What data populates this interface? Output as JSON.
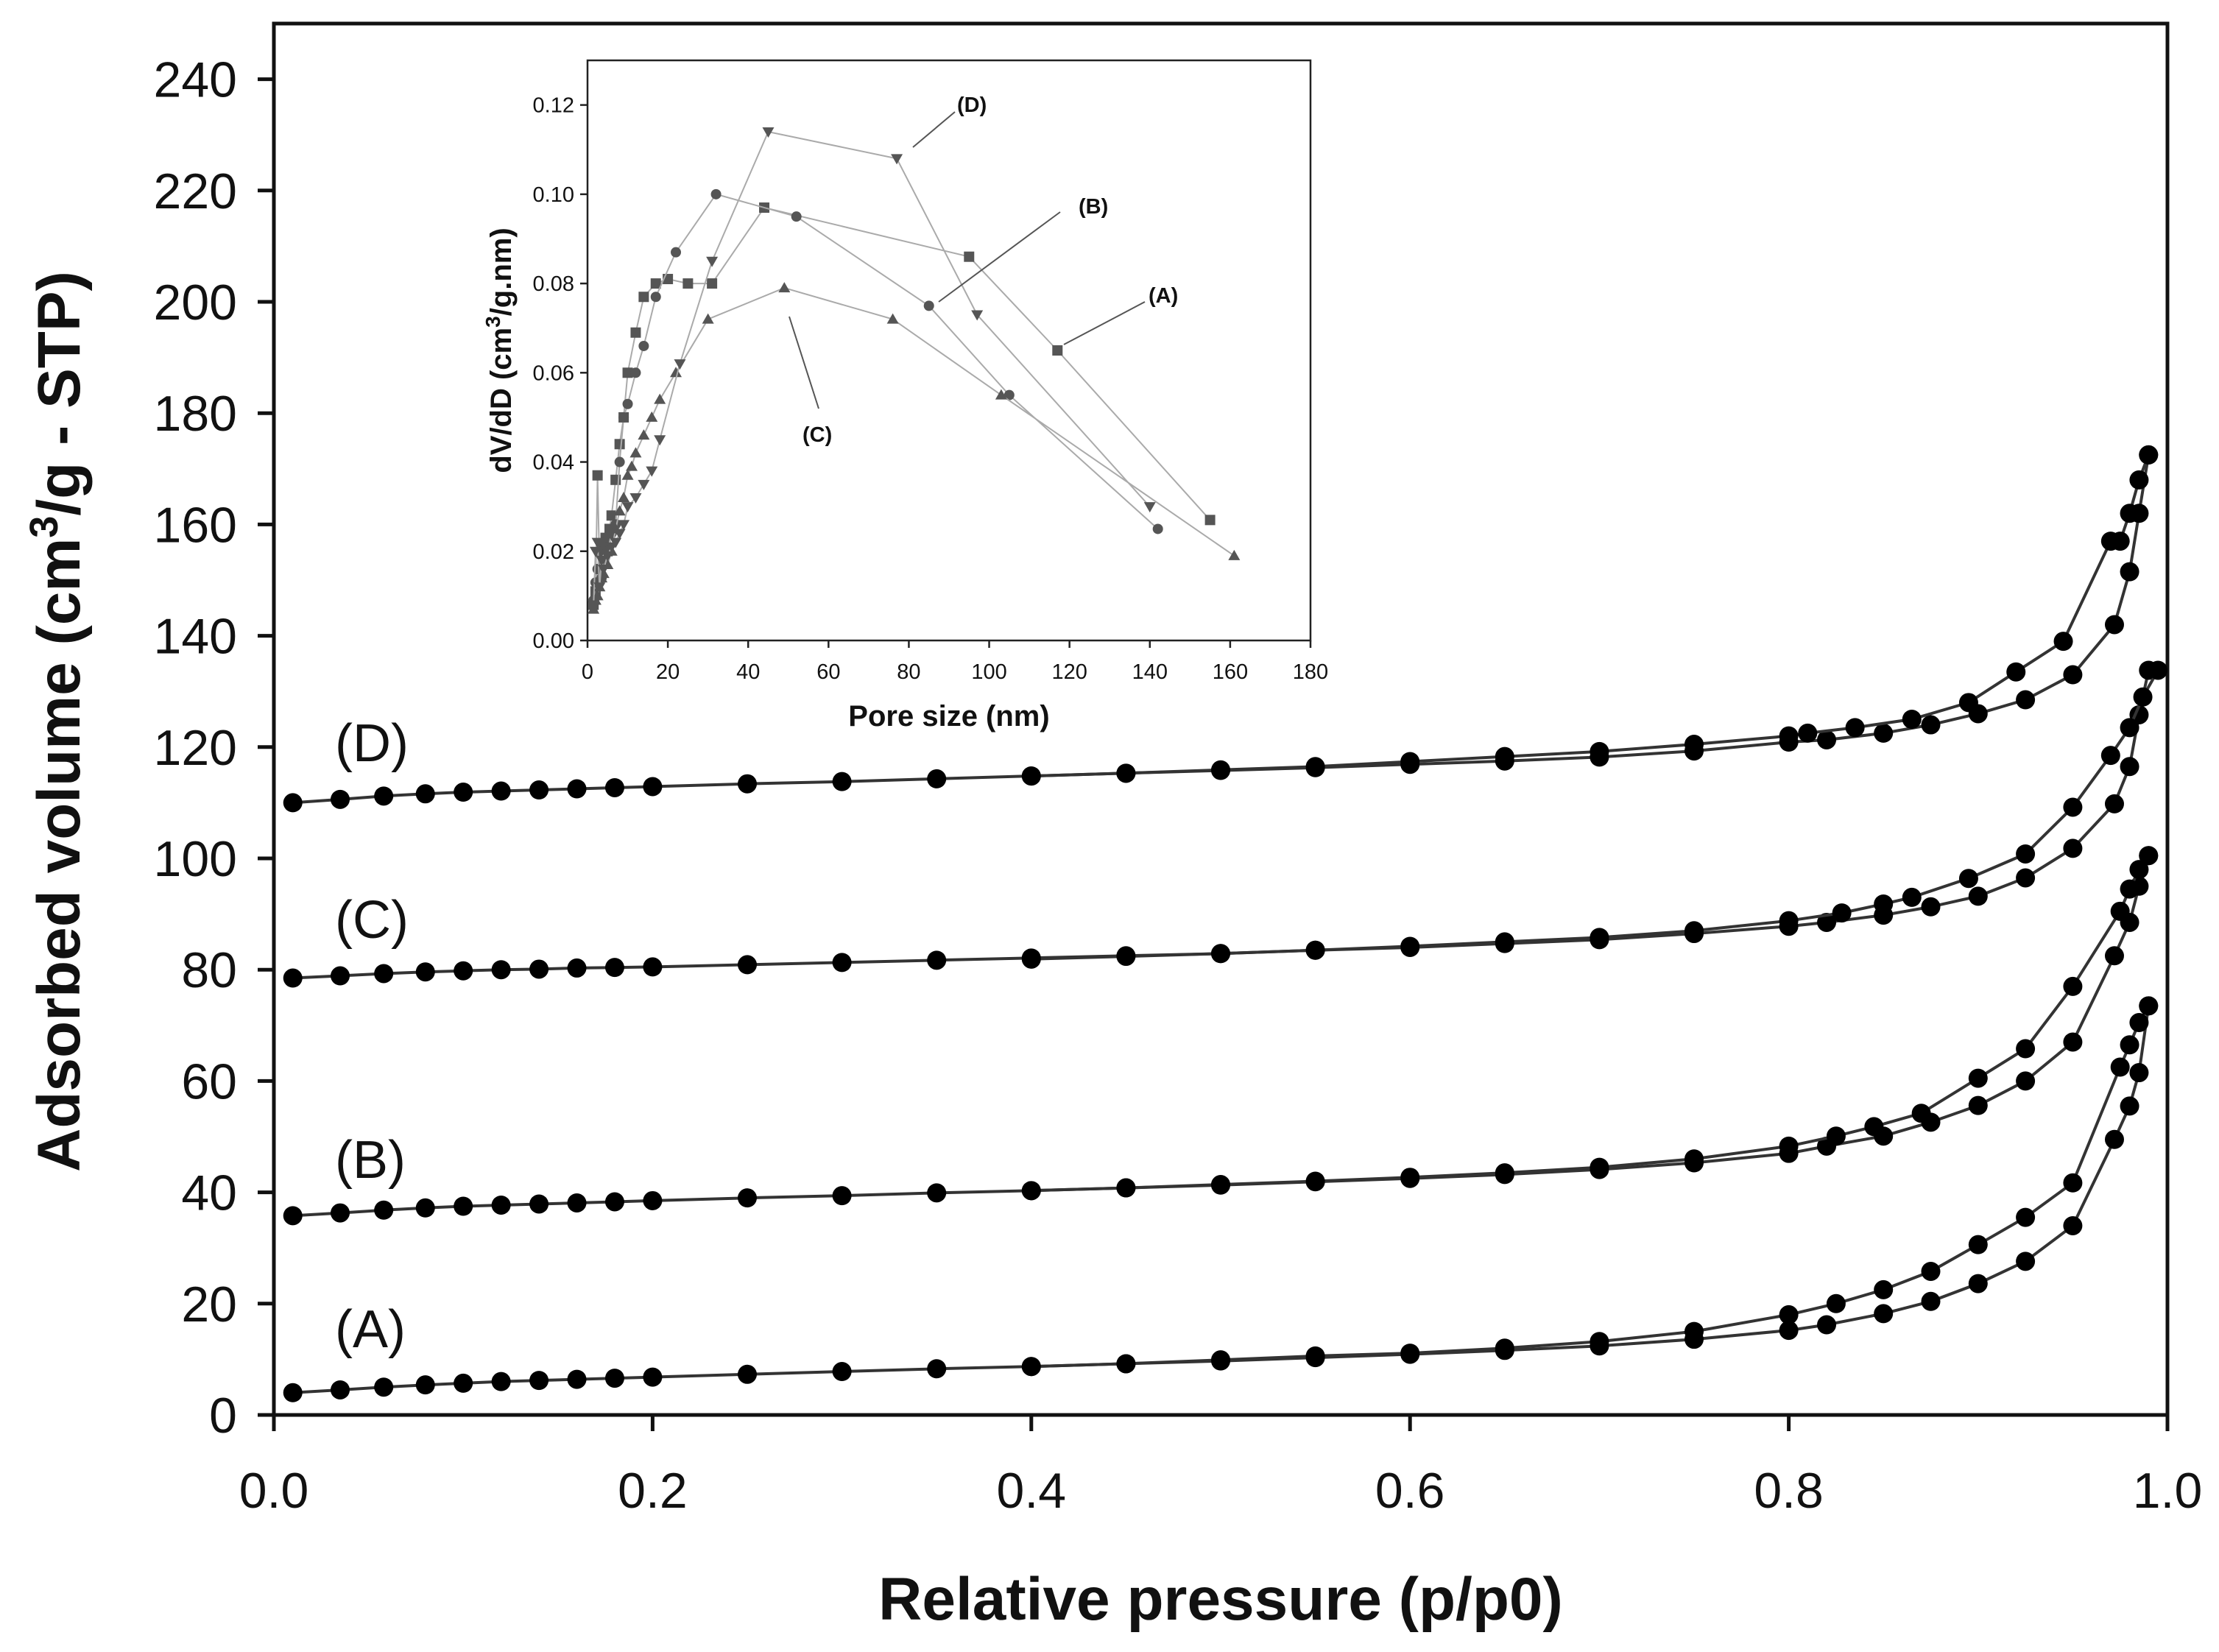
{
  "chart_data": [
    {
      "type": "line",
      "name": "main",
      "xlabel": "Relative pressure (p/p0)",
      "ylabel": "Adsorbed volume (cm3/g - STP)",
      "ylabel_base": "Adsorbed volume (cm",
      "ylabel_sup": "3",
      "ylabel_tail": "/g - STP)",
      "xlim": [
        0,
        1.0
      ],
      "ylim": [
        0,
        250
      ],
      "xticks": [
        "0.0",
        "0.2",
        "0.4",
        "0.6",
        "0.8",
        "1.0"
      ],
      "yticks": [
        "0",
        "20",
        "40",
        "60",
        "80",
        "100",
        "120",
        "140",
        "160",
        "180",
        "200",
        "220",
        "240"
      ],
      "xtick_values": [
        0,
        0.2,
        0.4,
        0.6,
        0.8,
        1.0
      ],
      "ytick_values": [
        0,
        20,
        40,
        60,
        80,
        100,
        120,
        140,
        160,
        180,
        200,
        220,
        240
      ],
      "grid": false,
      "series": [
        {
          "name": "(A)",
          "adsorption": {
            "x": [
              0.01,
              0.035,
              0.058,
              0.08,
              0.1,
              0.12,
              0.14,
              0.16,
              0.18,
              0.2,
              0.25,
              0.3,
              0.35,
              0.4,
              0.45,
              0.5,
              0.55,
              0.6,
              0.65,
              0.7,
              0.75,
              0.8,
              0.82,
              0.85,
              0.875,
              0.9,
              0.925,
              0.95,
              0.972,
              0.98,
              0.985,
              0.99
            ],
            "y": [
              4,
              4.5,
              5,
              5.4,
              5.7,
              6,
              6.2,
              6.4,
              6.6,
              6.8,
              7.3,
              7.8,
              8.3,
              8.7,
              9.2,
              9.7,
              10.3,
              10.9,
              11.6,
              12.4,
              13.6,
              15.2,
              16.2,
              18.2,
              20.4,
              23.6,
              27.6,
              34,
              49.5,
              55.5,
              61.5,
              73.5
            ]
          },
          "desorption": {
            "x": [
              0.99,
              0.985,
              0.98,
              0.975,
              0.95,
              0.925,
              0.9,
              0.875,
              0.85,
              0.825,
              0.8,
              0.75,
              0.7,
              0.65,
              0.6,
              0.55,
              0.5,
              0.45,
              0.4
            ],
            "y": [
              73.5,
              70.5,
              66.5,
              62.5,
              41.7,
              35.5,
              30.6,
              25.8,
              22.5,
              20,
              18,
              15,
              13.2,
              12,
              11.1,
              10.6,
              9.9,
              9.2,
              8.7
            ]
          }
        },
        {
          "name": "(B)",
          "adsorption": {
            "x": [
              0.01,
              0.035,
              0.058,
              0.08,
              0.1,
              0.12,
              0.14,
              0.16,
              0.18,
              0.2,
              0.25,
              0.3,
              0.35,
              0.4,
              0.45,
              0.5,
              0.55,
              0.6,
              0.65,
              0.7,
              0.75,
              0.8,
              0.82,
              0.85,
              0.875,
              0.9,
              0.925,
              0.95,
              0.972,
              0.98,
              0.985,
              0.99
            ],
            "y": [
              35.8,
              36.3,
              36.8,
              37.2,
              37.5,
              37.7,
              37.9,
              38.1,
              38.3,
              38.5,
              39,
              39.4,
              39.9,
              40.3,
              40.8,
              41.3,
              41.9,
              42.5,
              43.2,
              44.1,
              45.3,
              47,
              48.3,
              50.1,
              52.6,
              55.6,
              60,
              67,
              82.5,
              88.5,
              95,
              100.5
            ]
          },
          "desorption": {
            "x": [
              0.99,
              0.985,
              0.98,
              0.975,
              0.95,
              0.925,
              0.9,
              0.87,
              0.845,
              0.825,
              0.8,
              0.75,
              0.7,
              0.65,
              0.6,
              0.55,
              0.5,
              0.45,
              0.4
            ],
            "y": [
              100.5,
              98,
              94.5,
              90.5,
              77,
              65.8,
              60.5,
              54.2,
              51.8,
              50.1,
              48.3,
              46,
              44.5,
              43.5,
              42.7,
              42,
              41.4,
              40.8,
              40.3
            ]
          }
        },
        {
          "name": "(C)",
          "adsorption": {
            "x": [
              0.01,
              0.035,
              0.058,
              0.08,
              0.1,
              0.12,
              0.14,
              0.16,
              0.18,
              0.2,
              0.25,
              0.3,
              0.35,
              0.4,
              0.45,
              0.5,
              0.55,
              0.6,
              0.65,
              0.7,
              0.75,
              0.8,
              0.82,
              0.85,
              0.875,
              0.9,
              0.925,
              0.95,
              0.972,
              0.98,
              0.985,
              0.99
            ],
            "y": [
              78.5,
              78.9,
              79.3,
              79.6,
              79.8,
              80,
              80.1,
              80.3,
              80.4,
              80.5,
              80.9,
              81.3,
              81.7,
              82.1,
              82.5,
              82.9,
              83.5,
              84,
              84.7,
              85.4,
              86.5,
              87.8,
              88.5,
              89.8,
              91.3,
              93.2,
              96.5,
              101.8,
              109.8,
              116.5,
              125.8,
              133.8
            ]
          },
          "desorption": {
            "x": [
              0.995,
              0.987,
              0.98,
              0.97,
              0.95,
              0.925,
              0.895,
              0.865,
              0.85,
              0.828,
              0.8,
              0.75,
              0.7,
              0.65,
              0.6,
              0.55,
              0.5,
              0.45,
              0.4
            ],
            "y": [
              133.8,
              129,
              123.5,
              118.5,
              109.2,
              100.8,
              96.4,
              93,
              91.8,
              90.2,
              88.8,
              87,
              85.8,
              85,
              84.2,
              83.5,
              82.9,
              82.4,
              81.9
            ]
          }
        },
        {
          "name": "(D)",
          "adsorption": {
            "x": [
              0.01,
              0.035,
              0.058,
              0.08,
              0.1,
              0.12,
              0.14,
              0.16,
              0.18,
              0.2,
              0.25,
              0.3,
              0.35,
              0.4,
              0.45,
              0.5,
              0.55,
              0.6,
              0.65,
              0.7,
              0.75,
              0.8,
              0.82,
              0.85,
              0.875,
              0.9,
              0.925,
              0.95,
              0.972,
              0.98,
              0.985,
              0.99
            ],
            "y": [
              110,
              110.6,
              111.2,
              111.6,
              111.9,
              112.1,
              112.3,
              112.5,
              112.7,
              112.9,
              113.4,
              113.8,
              114.3,
              114.8,
              115.3,
              115.8,
              116.3,
              116.9,
              117.5,
              118.2,
              119.3,
              120.9,
              121.3,
              122.5,
              124,
              126,
              128.5,
              133,
              142,
              151.5,
              162,
              172.5
            ]
          },
          "desorption": {
            "x": [
              0.99,
              0.985,
              0.98,
              0.975,
              0.97,
              0.945,
              0.92,
              0.895,
              0.865,
              0.835,
              0.81,
              0.8,
              0.75,
              0.7,
              0.65,
              0.6,
              0.55,
              0.5,
              0.45,
              0.4
            ],
            "y": [
              172.5,
              168,
              162,
              157,
              157,
              139,
              133.5,
              128,
              125,
              123.5,
              122.5,
              122,
              120.5,
              119.2,
              118.3,
              117.4,
              116.5,
              115.9,
              115.3,
              114.8
            ]
          }
        }
      ]
    },
    {
      "type": "line",
      "name": "inset",
      "xlabel": "Pore size (nm)",
      "ylabel": "dV/dD (cm3/g.nm)",
      "ylabel_base": "dV/dD (cm",
      "ylabel_sup": "3",
      "ylabel_tail": "/g.nm)",
      "xlim": [
        0,
        180
      ],
      "ylim": [
        0,
        0.13
      ],
      "xticks": [
        "0",
        "20",
        "40",
        "60",
        "80",
        "100",
        "120",
        "140",
        "160",
        "180"
      ],
      "yticks": [
        "0.00",
        "0.02",
        "0.04",
        "0.06",
        "0.08",
        "0.10",
        "0.12"
      ],
      "xtick_values": [
        0,
        20,
        40,
        60,
        80,
        100,
        120,
        140,
        160,
        180
      ],
      "ytick_values": [
        0,
        0.02,
        0.04,
        0.06,
        0.08,
        0.1,
        0.12
      ],
      "grid": false,
      "series": [
        {
          "name": "(A)",
          "marker": "square",
          "x": [
            1.5,
            2,
            2.5,
            3,
            3.5,
            4,
            4.5,
            5,
            5.5,
            6,
            7,
            8,
            9,
            10,
            12,
            14,
            17,
            20,
            25,
            31,
            44,
            95,
            117,
            155
          ],
          "y": [
            0.008,
            0.011,
            0.037,
            0.016,
            0.02,
            0.018,
            0.023,
            0.02,
            0.025,
            0.028,
            0.036,
            0.044,
            0.05,
            0.06,
            0.069,
            0.077,
            0.08,
            0.081,
            0.08,
            0.08,
            0.097,
            0.086,
            0.065,
            0.027
          ]
        },
        {
          "name": "(B)",
          "marker": "circle",
          "x": [
            1.5,
            2,
            2.5,
            3,
            3.5,
            4,
            5,
            6,
            7,
            8,
            9,
            10,
            12,
            14,
            17,
            22,
            32,
            52,
            85,
            105,
            142
          ],
          "y": [
            0.009,
            0.013,
            0.016,
            0.02,
            0.014,
            0.021,
            0.02,
            0.024,
            0.026,
            0.04,
            0.05,
            0.053,
            0.06,
            0.066,
            0.077,
            0.087,
            0.1,
            0.095,
            0.075,
            0.055,
            0.025
          ]
        },
        {
          "name": "(C)",
          "marker": "triangle-up",
          "x": [
            1.5,
            2,
            2.5,
            3,
            3.5,
            4,
            5,
            6,
            7,
            8,
            9,
            10,
            11,
            12,
            14,
            16,
            18,
            22,
            30,
            49,
            76,
            103,
            161
          ],
          "y": [
            0.007,
            0.009,
            0.01,
            0.012,
            0.014,
            0.015,
            0.017,
            0.02,
            0.025,
            0.029,
            0.032,
            0.037,
            0.039,
            0.042,
            0.046,
            0.05,
            0.054,
            0.06,
            0.072,
            0.079,
            0.072,
            0.055,
            0.019
          ]
        },
        {
          "name": "(D)",
          "marker": "triangle-down",
          "x": [
            1.5,
            2,
            2.5,
            3,
            3.5,
            4,
            5,
            6,
            7,
            8,
            9,
            10,
            12,
            14,
            16,
            18,
            23,
            31,
            45,
            77,
            97,
            140
          ],
          "y": [
            0.008,
            0.02,
            0.022,
            0.012,
            0.018,
            0.016,
            0.019,
            0.021,
            0.022,
            0.024,
            0.026,
            0.03,
            0.032,
            0.035,
            0.038,
            0.045,
            0.062,
            0.085,
            0.114,
            0.108,
            0.073,
            0.03
          ]
        }
      ]
    }
  ]
}
